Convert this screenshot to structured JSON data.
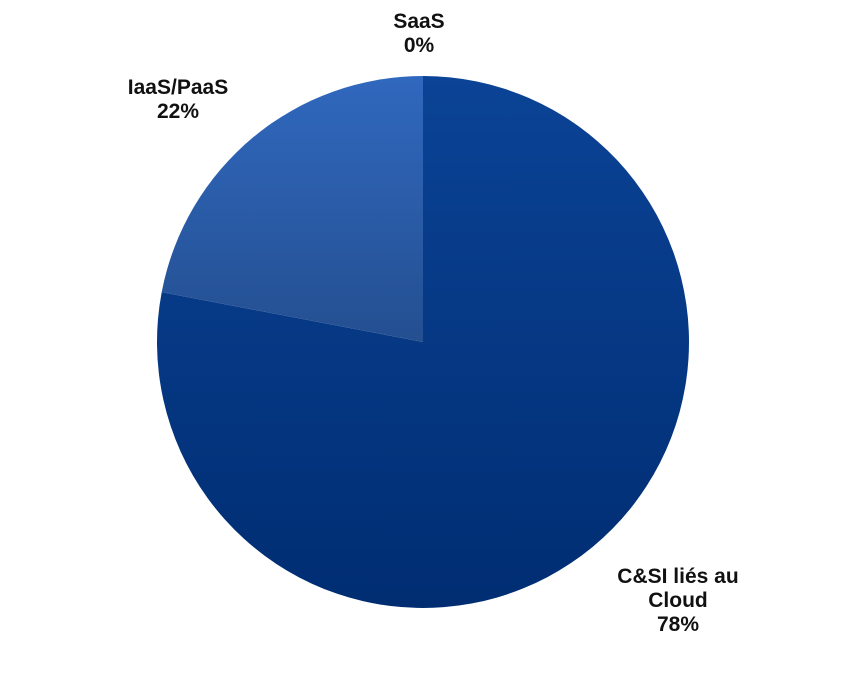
{
  "chart_data": {
    "type": "pie",
    "title": "",
    "start_angle_deg": 0,
    "direction": "clockwise",
    "slices": [
      {
        "category": "C&SI liés au Cloud",
        "label_lines": [
          "C&SI liés au",
          "Cloud"
        ],
        "value": 78,
        "value_label": "78%",
        "color": "#003a87",
        "shade_light": "#0b4396",
        "shade_dark": "#002d72"
      },
      {
        "category": "IaaS/PaaS",
        "label_lines": [
          "IaaS/PaaS"
        ],
        "value": 22,
        "value_label": "22%",
        "color": "#2d63b6",
        "shade_light": "#3068be",
        "shade_dark": "#244f91"
      },
      {
        "category": "SaaS",
        "label_lines": [
          "SaaS"
        ],
        "value": 0,
        "value_label": "0%",
        "color": "#6a8fd0",
        "shade_light": "#6a8fd0",
        "shade_dark": "#6a8fd0"
      }
    ]
  }
}
